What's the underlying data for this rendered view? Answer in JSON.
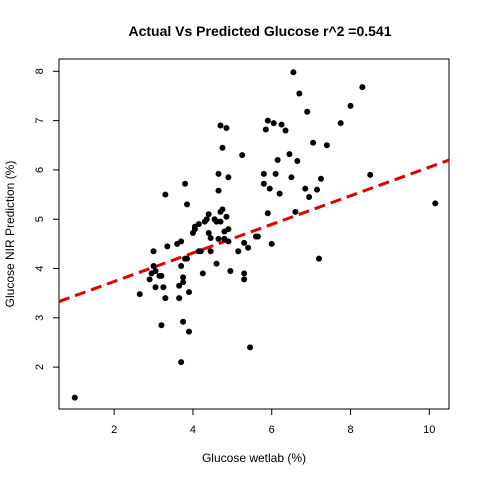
{
  "chart_data": {
    "type": "scatter",
    "title": "Actual Vs Predicted Glucose r^2 =0.541",
    "xlabel": "Glucose wetlab (%)",
    "ylabel": "Glucose NIR Prediction (%)",
    "xlim": [
      0.6,
      10.5
    ],
    "ylim": [
      1.15,
      8.25
    ],
    "xticks": [
      2,
      4,
      6,
      8,
      10
    ],
    "yticks": [
      2,
      3,
      4,
      5,
      6,
      7,
      8
    ],
    "xtick_labels": [
      "2",
      "4",
      "6",
      "8",
      "10"
    ],
    "ytick_labels": [
      "2",
      "3",
      "4",
      "5",
      "6",
      "7",
      "8"
    ],
    "grid": false,
    "series": [
      {
        "color": "#000000",
        "points": [
          [
            1.0,
            1.38
          ],
          [
            2.65,
            3.48
          ],
          [
            2.9,
            3.78
          ],
          [
            2.95,
            3.9
          ],
          [
            3.0,
            4.35
          ],
          [
            3.0,
            4.05
          ],
          [
            3.05,
            3.95
          ],
          [
            3.05,
            3.62
          ],
          [
            3.15,
            3.85
          ],
          [
            3.2,
            3.85
          ],
          [
            3.2,
            2.85
          ],
          [
            3.25,
            3.62
          ],
          [
            3.3,
            5.5
          ],
          [
            3.3,
            3.4
          ],
          [
            3.35,
            4.45
          ],
          [
            3.6,
            4.5
          ],
          [
            3.65,
            3.65
          ],
          [
            3.65,
            3.4
          ],
          [
            3.7,
            2.1
          ],
          [
            3.7,
            4.55
          ],
          [
            3.7,
            4.05
          ],
          [
            3.75,
            2.92
          ],
          [
            3.75,
            3.82
          ],
          [
            3.75,
            3.72
          ],
          [
            3.8,
            5.72
          ],
          [
            3.8,
            4.2
          ],
          [
            3.85,
            5.3
          ],
          [
            3.85,
            4.2
          ],
          [
            3.9,
            2.72
          ],
          [
            3.9,
            3.52
          ],
          [
            4.0,
            4.72
          ],
          [
            4.05,
            4.8
          ],
          [
            4.05,
            4.85
          ],
          [
            4.15,
            4.9
          ],
          [
            4.15,
            4.35
          ],
          [
            4.2,
            4.35
          ],
          [
            4.25,
            3.9
          ],
          [
            4.3,
            4.95
          ],
          [
            4.35,
            5.0
          ],
          [
            4.4,
            5.1
          ],
          [
            4.4,
            4.72
          ],
          [
            4.45,
            4.62
          ],
          [
            4.45,
            4.35
          ],
          [
            4.55,
            5.0
          ],
          [
            4.6,
            4.95
          ],
          [
            4.6,
            4.1
          ],
          [
            4.65,
            5.92
          ],
          [
            4.65,
            5.58
          ],
          [
            4.65,
            4.6
          ],
          [
            4.7,
            6.9
          ],
          [
            4.7,
            5.15
          ],
          [
            4.7,
            4.95
          ],
          [
            4.75,
            6.45
          ],
          [
            4.75,
            5.2
          ],
          [
            4.8,
            4.6
          ],
          [
            4.8,
            4.75
          ],
          [
            4.85,
            6.85
          ],
          [
            4.85,
            5.05
          ],
          [
            4.9,
            5.85
          ],
          [
            4.9,
            4.8
          ],
          [
            4.9,
            4.55
          ],
          [
            4.95,
            3.95
          ],
          [
            5.15,
            4.35
          ],
          [
            5.25,
            6.3
          ],
          [
            5.3,
            4.52
          ],
          [
            5.3,
            3.9
          ],
          [
            5.3,
            3.78
          ],
          [
            5.4,
            4.42
          ],
          [
            5.45,
            2.4
          ],
          [
            5.6,
            4.65
          ],
          [
            5.65,
            4.65
          ],
          [
            5.8,
            5.92
          ],
          [
            5.8,
            5.72
          ],
          [
            5.85,
            6.82
          ],
          [
            5.9,
            7.0
          ],
          [
            5.9,
            5.12
          ],
          [
            5.95,
            5.62
          ],
          [
            6.0,
            4.5
          ],
          [
            6.05,
            6.95
          ],
          [
            6.1,
            5.92
          ],
          [
            6.15,
            6.2
          ],
          [
            6.2,
            5.52
          ],
          [
            6.25,
            6.92
          ],
          [
            6.35,
            6.8
          ],
          [
            6.45,
            6.32
          ],
          [
            6.5,
            5.85
          ],
          [
            6.55,
            7.98
          ],
          [
            6.6,
            5.15
          ],
          [
            6.65,
            6.18
          ],
          [
            6.7,
            7.55
          ],
          [
            6.85,
            5.62
          ],
          [
            6.9,
            7.18
          ],
          [
            6.95,
            5.45
          ],
          [
            7.05,
            6.55
          ],
          [
            7.15,
            5.6
          ],
          [
            7.2,
            4.2
          ],
          [
            7.25,
            5.82
          ],
          [
            7.4,
            6.5
          ],
          [
            7.75,
            6.95
          ],
          [
            8.0,
            7.3
          ],
          [
            8.3,
            7.68
          ],
          [
            8.5,
            5.9
          ],
          [
            10.15,
            5.32
          ]
        ]
      }
    ],
    "fit_line": {
      "color": "#e00000",
      "style": "dashed",
      "x": [
        0.6,
        10.5
      ],
      "y": [
        3.33,
        6.2
      ]
    }
  }
}
